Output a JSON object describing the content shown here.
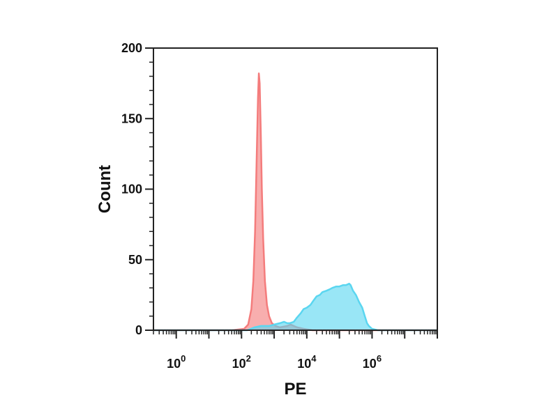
{
  "chart_data": {
    "type": "area",
    "title": "",
    "xlabel": "PE",
    "ylabel": "Count",
    "x_scale": "log",
    "x_range": [
      0.2,
      100000000
    ],
    "y_range": [
      0,
      200
    ],
    "grid": false,
    "x_ticks": [
      {
        "value": 1,
        "base": "10",
        "exp": "0"
      },
      {
        "value": 100,
        "base": "10",
        "exp": "2"
      },
      {
        "value": 10000,
        "base": "10",
        "exp": "4"
      },
      {
        "value": 1000000,
        "base": "10",
        "exp": "6"
      }
    ],
    "y_ticks": [
      "0",
      "50",
      "100",
      "150",
      "200"
    ],
    "series": [
      {
        "color": "#f47c7c",
        "points": [
          [
            0.2,
            0
          ],
          [
            50,
            0
          ],
          [
            120,
            1
          ],
          [
            160,
            4
          ],
          [
            200,
            15
          ],
          [
            230,
            35
          ],
          [
            260,
            70
          ],
          [
            290,
            120
          ],
          [
            320,
            165
          ],
          [
            340,
            182
          ],
          [
            360,
            175
          ],
          [
            390,
            140
          ],
          [
            420,
            100
          ],
          [
            460,
            65
          ],
          [
            520,
            35
          ],
          [
            600,
            18
          ],
          [
            700,
            10
          ],
          [
            850,
            5
          ],
          [
            1100,
            3
          ],
          [
            1500,
            2
          ],
          [
            2500,
            3
          ],
          [
            3200,
            4
          ],
          [
            5000,
            2
          ],
          [
            8000,
            1
          ],
          [
            15000,
            0
          ],
          [
            100000000,
            0
          ]
        ]
      },
      {
        "color": "#5bd6f0",
        "points": [
          [
            0.2,
            0
          ],
          [
            150,
            0
          ],
          [
            250,
            2
          ],
          [
            400,
            3
          ],
          [
            700,
            3
          ],
          [
            1000,
            4
          ],
          [
            1500,
            5
          ],
          [
            2000,
            6
          ],
          [
            2500,
            5
          ],
          [
            3000,
            5
          ],
          [
            4000,
            6
          ],
          [
            5000,
            9
          ],
          [
            6500,
            12
          ],
          [
            8000,
            15
          ],
          [
            10000,
            16
          ],
          [
            13000,
            18
          ],
          [
            16000,
            21
          ],
          [
            20000,
            24
          ],
          [
            25000,
            25
          ],
          [
            30000,
            27
          ],
          [
            40000,
            28
          ],
          [
            50000,
            29
          ],
          [
            60000,
            30
          ],
          [
            80000,
            31
          ],
          [
            100000,
            31
          ],
          [
            130000,
            32
          ],
          [
            160000,
            32
          ],
          [
            200000,
            33
          ],
          [
            220000,
            32
          ],
          [
            260000,
            28
          ],
          [
            320000,
            25
          ],
          [
            400000,
            20
          ],
          [
            500000,
            16
          ],
          [
            600000,
            10
          ],
          [
            700000,
            5
          ],
          [
            800000,
            3
          ],
          [
            1000000,
            1
          ],
          [
            1500000,
            0
          ],
          [
            100000000,
            0
          ]
        ]
      }
    ]
  }
}
